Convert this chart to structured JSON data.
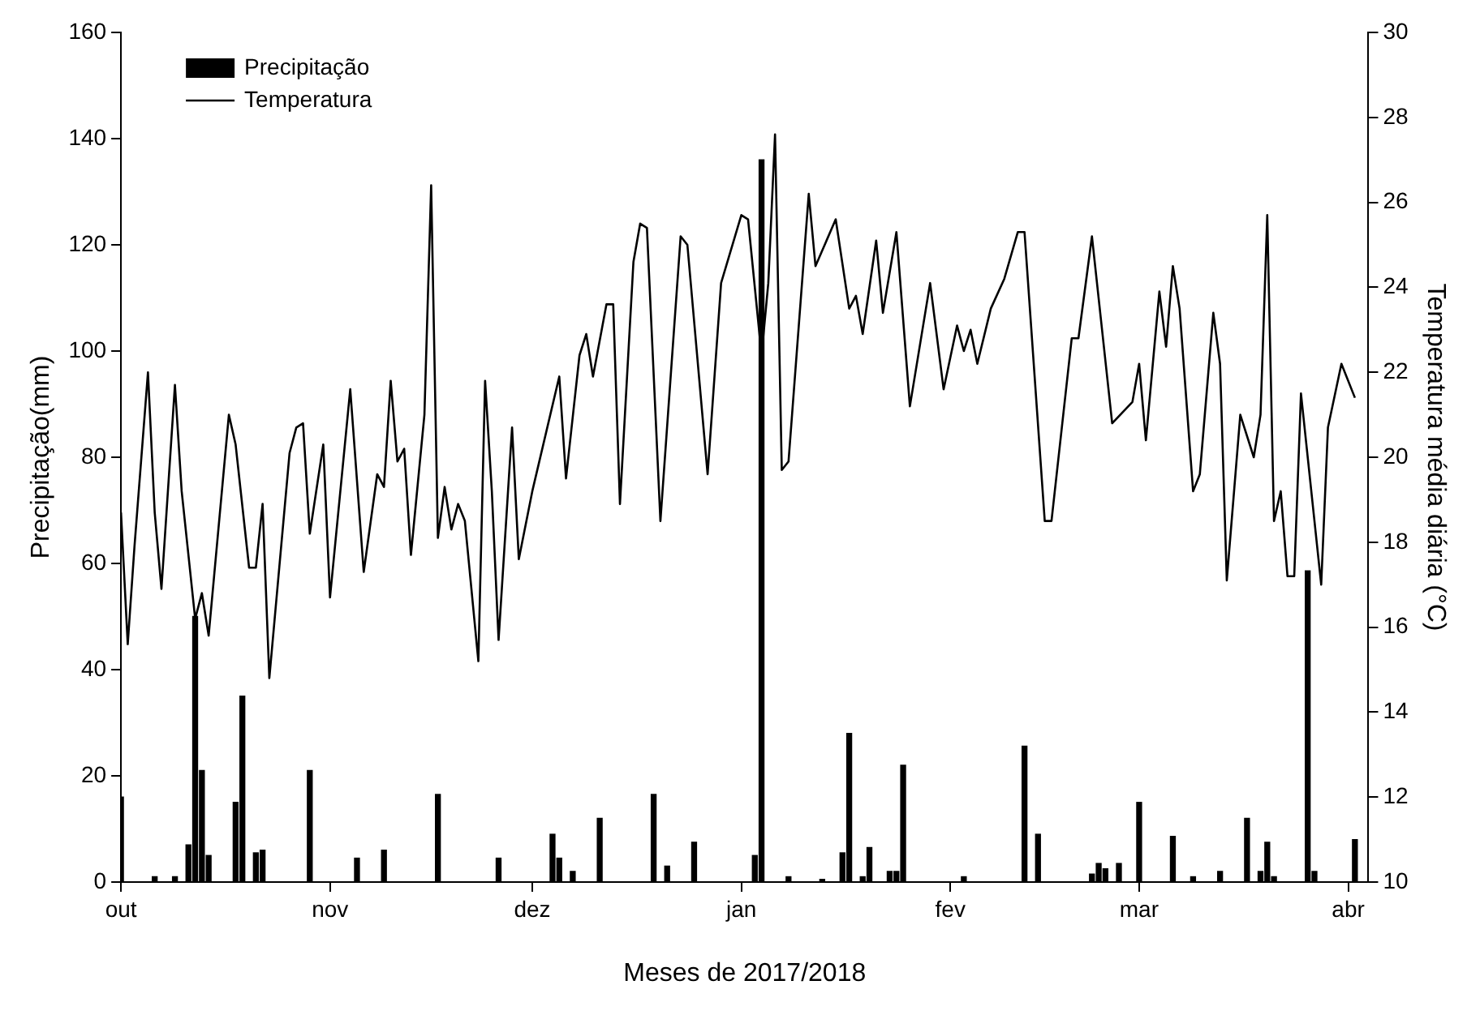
{
  "chart_data": {
    "type": "bar",
    "xlabel": "Meses de 2017/2018",
    "ylabel": "Precipitação(mm)",
    "y2label": "Temperatura média diária (°C)",
    "xlim": [
      "2017-10-01",
      "2018-04-04"
    ],
    "xticks": [
      {
        "value": "2017-10-01",
        "label": "out"
      },
      {
        "value": "2017-11-01",
        "label": "nov"
      },
      {
        "value": "2017-12-01",
        "label": "dez"
      },
      {
        "value": "2018-01-01",
        "label": "jan"
      },
      {
        "value": "2018-02-01",
        "label": "fev"
      },
      {
        "value": "2018-03-01",
        "label": "mar"
      },
      {
        "value": "2018-04-01",
        "label": "abr"
      }
    ],
    "ylim": [
      0,
      160
    ],
    "yticks": [
      0,
      20,
      40,
      60,
      80,
      100,
      120,
      140,
      160
    ],
    "y2lim": [
      10,
      30
    ],
    "y2ticks": [
      10,
      12,
      14,
      16,
      18,
      20,
      22,
      24,
      26,
      28,
      30
    ],
    "grid": false,
    "legend": "top left",
    "marker": "none",
    "line_style": "solid",
    "series": [
      {
        "name": "Precipitação",
        "color": "#000000",
        "x": [
          "2017-10-01",
          "2017-10-06",
          "2017-10-09",
          "2017-10-11",
          "2017-10-12",
          "2017-10-13",
          "2017-10-14",
          "2017-10-18",
          "2017-10-19",
          "2017-10-21",
          "2017-10-22",
          "2017-10-29",
          "2017-11-05",
          "2017-11-09",
          "2017-11-17",
          "2017-11-26",
          "2017-12-04",
          "2017-12-05",
          "2017-12-07",
          "2017-12-11",
          "2017-12-19",
          "2017-12-21",
          "2017-12-25",
          "2018-01-03",
          "2018-01-04",
          "2018-01-08",
          "2018-01-13",
          "2018-01-16",
          "2018-01-17",
          "2018-01-19",
          "2018-01-20",
          "2018-01-23",
          "2018-01-24",
          "2018-01-25",
          "2018-02-03",
          "2018-02-12",
          "2018-02-14",
          "2018-02-22",
          "2018-02-23",
          "2018-02-24",
          "2018-02-26",
          "2018-03-01",
          "2018-03-06",
          "2018-03-09",
          "2018-03-13",
          "2018-03-17",
          "2018-03-19",
          "2018-03-20",
          "2018-03-21",
          "2018-03-26",
          "2018-03-27",
          "2018-04-02"
        ],
        "values": [
          16,
          1,
          1,
          7,
          50,
          21,
          5,
          15,
          35,
          5.5,
          6,
          21,
          4.5,
          6,
          16.5,
          4.5,
          9,
          4.5,
          2,
          12,
          16.5,
          3,
          7.5,
          5,
          136,
          1,
          0.5,
          5.5,
          28,
          1,
          6.5,
          2,
          2,
          22,
          1,
          25.6,
          9,
          1.5,
          3.5,
          2.5,
          3.5,
          15,
          8.6,
          1,
          2,
          12,
          2,
          7.5,
          1,
          58.6,
          2,
          8
        ]
      },
      {
        "name": "Temperatura",
        "type": "line",
        "axis": "y2",
        "color": "#000000",
        "x": [
          "2017-10-01",
          "2017-10-02",
          "2017-10-03",
          "2017-10-05",
          "2017-10-06",
          "2017-10-07",
          "2017-10-09",
          "2017-10-10",
          "2017-10-12",
          "2017-10-13",
          "2017-10-14",
          "2017-10-17",
          "2017-10-18",
          "2017-10-20",
          "2017-10-21",
          "2017-10-22",
          "2017-10-23",
          "2017-10-26",
          "2017-10-27",
          "2017-10-28",
          "2017-10-29",
          "2017-10-31",
          "2017-11-01",
          "2017-11-04",
          "2017-11-06",
          "2017-11-08",
          "2017-11-09",
          "2017-11-10",
          "2017-11-11",
          "2017-11-12",
          "2017-11-13",
          "2017-11-15",
          "2017-11-16",
          "2017-11-17",
          "2017-11-18",
          "2017-11-19",
          "2017-11-20",
          "2017-11-21",
          "2017-11-23",
          "2017-11-24",
          "2017-11-25",
          "2017-11-26",
          "2017-11-28",
          "2017-11-29",
          "2017-12-01",
          "2017-12-05",
          "2017-12-06",
          "2017-12-08",
          "2017-12-09",
          "2017-12-10",
          "2017-12-12",
          "2017-12-13",
          "2017-12-14",
          "2017-12-16",
          "2017-12-17",
          "2017-12-18",
          "2017-12-20",
          "2017-12-23",
          "2017-12-24",
          "2017-12-27",
          "2017-12-29",
          "2018-01-01",
          "2018-01-02",
          "2018-01-04",
          "2018-01-05",
          "2018-01-06",
          "2018-01-07",
          "2018-01-08",
          "2018-01-11",
          "2018-01-12",
          "2018-01-15",
          "2018-01-17",
          "2018-01-18",
          "2018-01-19",
          "2018-01-21",
          "2018-01-22",
          "2018-01-24",
          "2018-01-26",
          "2018-01-29",
          "2018-01-31",
          "2018-02-02",
          "2018-02-03",
          "2018-02-04",
          "2018-02-05",
          "2018-02-07",
          "2018-02-09",
          "2018-02-11",
          "2018-02-12",
          "2018-02-15",
          "2018-02-16",
          "2018-02-19",
          "2018-02-20",
          "2018-02-22",
          "2018-02-25",
          "2018-02-28",
          "2018-03-01",
          "2018-03-02",
          "2018-03-04",
          "2018-03-05",
          "2018-03-06",
          "2018-03-07",
          "2018-03-09",
          "2018-03-10",
          "2018-03-12",
          "2018-03-13",
          "2018-03-14",
          "2018-03-16",
          "2018-03-18",
          "2018-03-19",
          "2018-03-20",
          "2018-03-21",
          "2018-03-22",
          "2018-03-23",
          "2018-03-24",
          "2018-03-25",
          "2018-03-28",
          "2018-03-29",
          "2018-03-31",
          "2018-04-02"
        ],
        "values": [
          18.7,
          15.6,
          17.9,
          22.0,
          18.7,
          16.9,
          21.7,
          19.2,
          16.2,
          16.8,
          15.8,
          21.0,
          20.3,
          17.4,
          17.4,
          18.9,
          14.8,
          20.1,
          20.7,
          20.8,
          18.2,
          20.3,
          16.7,
          21.6,
          17.3,
          19.6,
          19.3,
          21.8,
          19.9,
          20.2,
          17.7,
          21.0,
          26.4,
          18.1,
          19.3,
          18.3,
          18.9,
          18.5,
          15.2,
          21.8,
          19.2,
          15.7,
          20.7,
          17.6,
          19.2,
          21.9,
          19.5,
          22.4,
          22.9,
          21.9,
          23.6,
          23.6,
          18.9,
          24.6,
          25.5,
          25.4,
          18.5,
          25.2,
          25.0,
          19.6,
          24.1,
          25.7,
          25.6,
          22.4,
          24.1,
          27.6,
          19.7,
          19.9,
          26.2,
          24.5,
          25.6,
          23.5,
          23.8,
          22.9,
          25.1,
          23.4,
          25.3,
          21.2,
          24.1,
          21.6,
          23.1,
          22.5,
          23.0,
          22.2,
          23.5,
          24.2,
          25.3,
          25.3,
          18.5,
          18.5,
          22.8,
          22.8,
          25.2,
          20.8,
          21.3,
          22.2,
          20.4,
          23.9,
          22.6,
          24.5,
          23.5,
          19.2,
          19.6,
          23.4,
          22.2,
          17.1,
          21.0,
          20.0,
          21.0,
          25.7,
          18.5,
          19.2,
          17.2,
          17.2,
          21.5,
          17.0,
          20.7,
          22.2,
          21.4
        ]
      }
    ]
  }
}
